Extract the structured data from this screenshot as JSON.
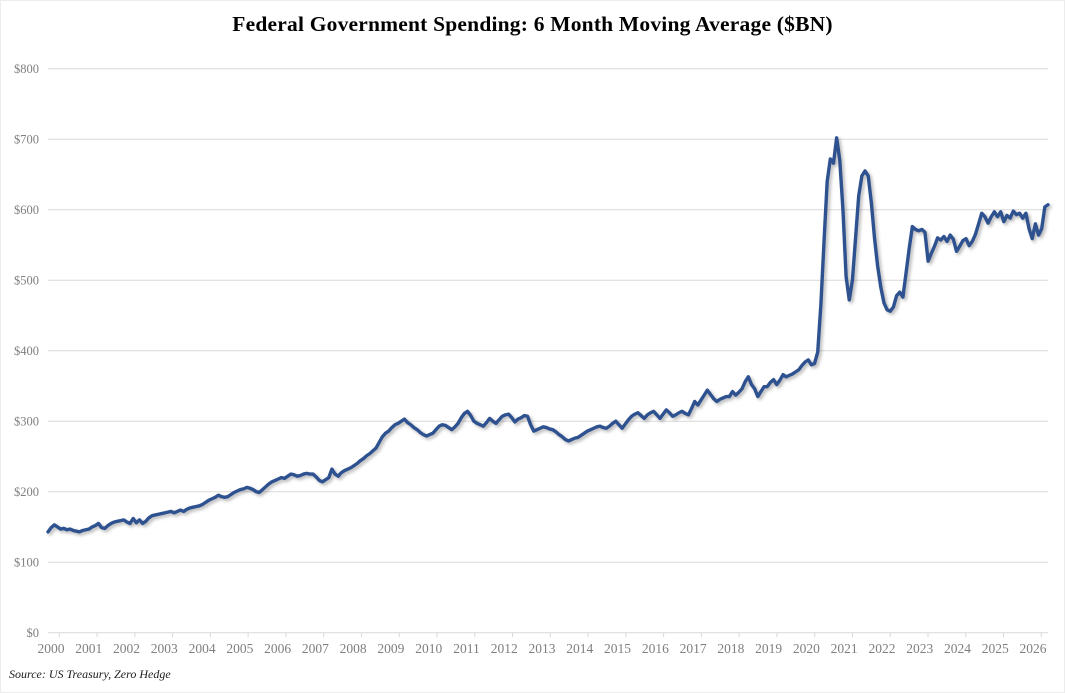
{
  "title": "Federal Government Spending: 6 Month Moving Average ($BN)",
  "source": "Source: US Treasury, Zero Hedge",
  "colors": {
    "line": "#2e5190",
    "grid": "#d9d9d9",
    "axis_text": "#7f7f7f",
    "title_text": "#000000"
  },
  "chart_data": {
    "type": "line",
    "title": "Federal Government Spending: 6 Month Moving Average ($BN)",
    "xlabel": "",
    "ylabel": "",
    "ylim": [
      0,
      800
    ],
    "y_tick_step": 100,
    "y_tick_labels": [
      "$0",
      "$100",
      "$200",
      "$300",
      "$400",
      "$500",
      "$600",
      "$700",
      "$800"
    ],
    "x_tick_labels": [
      "2000",
      "2001",
      "2002",
      "2003",
      "2004",
      "2005",
      "2006",
      "2007",
      "2008",
      "2009",
      "2010",
      "2011",
      "2012",
      "2013",
      "2014",
      "2015",
      "2016",
      "2017",
      "2018",
      "2019",
      "2020",
      "2021",
      "2022",
      "2023",
      "2024",
      "2025",
      "2026"
    ],
    "grid": "horizontal",
    "legend": "none",
    "x_start": "2000-01",
    "x_end": "2026-06",
    "x_step": "1 month",
    "series": [
      {
        "name": "Federal government spending, 6-month moving average ($BN)",
        "monthly_values": [
          143,
          149,
          153,
          150,
          147,
          148,
          146,
          147,
          145,
          144,
          143,
          145,
          146,
          147,
          150,
          152,
          155,
          149,
          148,
          152,
          155,
          157,
          158,
          159,
          160,
          157,
          155,
          162,
          156,
          160,
          155,
          158,
          163,
          166,
          167,
          168,
          169,
          170,
          171,
          172,
          170,
          172,
          174,
          172,
          175,
          177,
          178,
          179,
          180,
          182,
          185,
          188,
          190,
          192,
          195,
          193,
          192,
          193,
          196,
          199,
          201,
          203,
          204,
          206,
          205,
          203,
          200,
          199,
          203,
          207,
          211,
          214,
          216,
          218,
          220,
          219,
          222,
          225,
          224,
          222,
          223,
          225,
          226,
          225,
          225,
          221,
          216,
          214,
          217,
          220,
          232,
          225,
          222,
          227,
          230,
          232,
          234,
          237,
          240,
          244,
          247,
          251,
          254,
          258,
          262,
          270,
          278,
          283,
          286,
          291,
          295,
          297,
          300,
          303,
          298,
          295,
          291,
          288,
          284,
          281,
          279,
          281,
          283,
          288,
          293,
          295,
          294,
          291,
          288,
          292,
          297,
          305,
          311,
          314,
          308,
          300,
          297,
          295,
          293,
          298,
          304,
          300,
          297,
          302,
          307,
          309,
          310,
          305,
          299,
          303,
          305,
          308,
          307,
          295,
          286,
          288,
          290,
          292,
          291,
          289,
          288,
          285,
          281,
          278,
          274,
          272,
          274,
          276,
          277,
          280,
          283,
          286,
          288,
          290,
          292,
          293,
          291,
          290,
          293,
          297,
          300,
          295,
          290,
          296,
          302,
          307,
          310,
          312,
          308,
          304,
          309,
          312,
          314,
          309,
          304,
          310,
          316,
          312,
          307,
          309,
          312,
          314,
          311,
          309,
          318,
          328,
          323,
          330,
          337,
          344,
          338,
          332,
          328,
          331,
          333,
          335,
          335,
          342,
          337,
          341,
          346,
          356,
          363,
          352,
          346,
          335,
          342,
          349,
          349,
          355,
          359,
          352,
          358,
          366,
          363,
          365,
          367,
          370,
          373,
          379,
          384,
          387,
          380,
          382,
          398,
          465,
          555,
          640,
          672,
          666,
          702,
          670,
          600,
          505,
          472,
          500,
          560,
          620,
          648,
          655,
          648,
          610,
          560,
          520,
          490,
          468,
          458,
          456,
          462,
          478,
          483,
          476,
          510,
          545,
          576,
          572,
          570,
          572,
          568,
          527,
          538,
          548,
          560,
          557,
          562,
          555,
          564,
          558,
          541,
          548,
          556,
          559,
          549,
          555,
          565,
          580,
          595,
          590,
          581,
          590,
          597,
          590,
          597,
          583,
          592,
          588,
          598,
          593,
          595,
          588,
          595,
          573,
          559,
          580,
          564,
          573,
          604,
          607
        ]
      }
    ]
  }
}
